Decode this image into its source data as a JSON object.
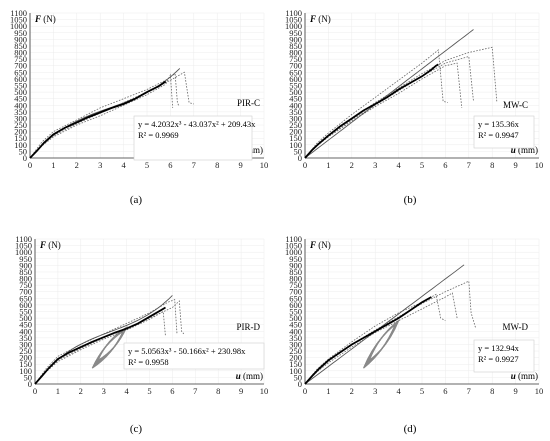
{
  "chart_data": [
    {
      "type": "line",
      "panel_label": "(a)",
      "ylabel_sym": "F",
      "ylabel_unit": "(N)",
      "xlabel_sym": "u",
      "xlabel_unit": "(mm)",
      "xlim": [
        0,
        10
      ],
      "ylim": [
        0,
        1100
      ],
      "x_ticks": [
        "0",
        "1",
        "2",
        "3",
        "4",
        "5",
        "6",
        "7",
        "8",
        "9",
        "10"
      ],
      "y_ticks": [
        "0",
        "50",
        "100",
        "150",
        "200",
        "250",
        "300",
        "350",
        "400",
        "450",
        "500",
        "550",
        "600",
        "650",
        "700",
        "750",
        "800",
        "850",
        "900",
        "950",
        "1000",
        "1050",
        "1100"
      ],
      "sample": "PIR-C",
      "equation": "y = 4.2032x³ - 43.037x² + 209.43x",
      "r2": "R² = 0.9969",
      "fit": {
        "form": "poly3",
        "coef": [
          4.2032,
          -43.037,
          209.43
        ],
        "x_max": 6.4
      },
      "mean_curve": [
        [
          0,
          0
        ],
        [
          0.3,
          55
        ],
        [
          0.6,
          115
        ],
        [
          1,
          180
        ],
        [
          1.5,
          230
        ],
        [
          2,
          270
        ],
        [
          2.5,
          310
        ],
        [
          3,
          345
        ],
        [
          3.5,
          380
        ],
        [
          4,
          410
        ],
        [
          4.5,
          450
        ],
        [
          5,
          500
        ],
        [
          5.5,
          545
        ],
        [
          5.8,
          580
        ]
      ],
      "test_curves": [
        [
          [
            0,
            0
          ],
          [
            0.5,
            120
          ],
          [
            1,
            200
          ],
          [
            2,
            290
          ],
          [
            3,
            380
          ],
          [
            4,
            450
          ],
          [
            5,
            520
          ],
          [
            5.8,
            590
          ],
          [
            6.2,
            640
          ],
          [
            6.3,
            420
          ],
          [
            6.35,
            400
          ]
        ],
        [
          [
            0,
            0
          ],
          [
            0.5,
            100
          ],
          [
            1,
            170
          ],
          [
            2,
            260
          ],
          [
            3,
            340
          ],
          [
            4,
            420
          ],
          [
            5,
            500
          ],
          [
            6,
            590
          ],
          [
            6.6,
            650
          ],
          [
            6.8,
            420
          ],
          [
            7,
            410
          ]
        ],
        [
          [
            0,
            0
          ],
          [
            0.5,
            90
          ],
          [
            1,
            160
          ],
          [
            2,
            250
          ],
          [
            3,
            320
          ],
          [
            4,
            400
          ],
          [
            5,
            480
          ],
          [
            5.8,
            560
          ],
          [
            6,
            630
          ],
          [
            6.1,
            380
          ]
        ]
      ]
    },
    {
      "type": "line",
      "panel_label": "(b)",
      "ylabel_sym": "F",
      "ylabel_unit": "(N)",
      "xlabel_sym": "u",
      "xlabel_unit": "(mm)",
      "xlim": [
        0,
        10
      ],
      "ylim": [
        0,
        1100
      ],
      "x_ticks": [
        "0",
        "1",
        "2",
        "3",
        "4",
        "5",
        "6",
        "7",
        "8",
        "9",
        "10"
      ],
      "y_ticks": [
        "0",
        "50",
        "100",
        "150",
        "200",
        "250",
        "300",
        "350",
        "400",
        "450",
        "500",
        "550",
        "600",
        "650",
        "700",
        "750",
        "800",
        "850",
        "900",
        "950",
        "1000",
        "1050",
        "1100"
      ],
      "sample": "MW-C",
      "equation": "y = 135.36x",
      "r2": "R² = 0.9947",
      "fit": {
        "form": "linear",
        "slope": 135.36,
        "x_max": 7.2
      },
      "mean_curve": [
        [
          0,
          0
        ],
        [
          0.3,
          60
        ],
        [
          0.6,
          110
        ],
        [
          1,
          170
        ],
        [
          1.5,
          240
        ],
        [
          2,
          300
        ],
        [
          2.5,
          360
        ],
        [
          3,
          410
        ],
        [
          3.5,
          460
        ],
        [
          4,
          520
        ],
        [
          4.5,
          570
        ],
        [
          5,
          620
        ],
        [
          5.4,
          670
        ],
        [
          5.6,
          700
        ],
        [
          5.7,
          710
        ]
      ],
      "test_curves": [
        [
          [
            0,
            0
          ],
          [
            0.5,
            110
          ],
          [
            1,
            190
          ],
          [
            2,
            330
          ],
          [
            3,
            460
          ],
          [
            4,
            590
          ],
          [
            5,
            720
          ],
          [
            5.7,
            820
          ],
          [
            5.9,
            430
          ],
          [
            6.1,
            420
          ]
        ],
        [
          [
            0,
            0
          ],
          [
            0.5,
            90
          ],
          [
            1,
            160
          ],
          [
            2,
            280
          ],
          [
            3,
            390
          ],
          [
            4,
            490
          ],
          [
            5,
            600
          ],
          [
            6,
            700
          ],
          [
            6.5,
            720
          ],
          [
            6.7,
            380
          ]
        ],
        [
          [
            0,
            0
          ],
          [
            0.5,
            100
          ],
          [
            1,
            170
          ],
          [
            2,
            300
          ],
          [
            3,
            420
          ],
          [
            4,
            530
          ],
          [
            5,
            640
          ],
          [
            6,
            740
          ],
          [
            7,
            800
          ],
          [
            8,
            840
          ],
          [
            8.2,
            420
          ]
        ],
        [
          [
            0,
            0
          ],
          [
            0.5,
            95
          ],
          [
            1,
            165
          ],
          [
            2,
            290
          ],
          [
            3,
            400
          ],
          [
            4,
            510
          ],
          [
            5,
            620
          ],
          [
            6,
            720
          ],
          [
            7,
            770
          ],
          [
            7.2,
            430
          ]
        ]
      ]
    },
    {
      "type": "line",
      "panel_label": "(c)",
      "ylabel_sym": "F",
      "ylabel_unit": "(N)",
      "xlabel_sym": "u",
      "xlabel_unit": "(mm)",
      "xlim": [
        0,
        10
      ],
      "ylim": [
        0,
        1100
      ],
      "x_ticks": [
        "0",
        "1",
        "2",
        "3",
        "4",
        "5",
        "6",
        "7",
        "8",
        "9",
        "10"
      ],
      "y_ticks": [
        "0",
        "50",
        "100",
        "150",
        "200",
        "250",
        "300",
        "350",
        "400",
        "450",
        "500",
        "550",
        "600",
        "650",
        "700",
        "750",
        "800",
        "850",
        "900",
        "950",
        "1000",
        "1050",
        "1100"
      ],
      "sample": "PIR-D",
      "equation": "y = 5.0563x³ - 50.166x² + 230.98x",
      "r2": "R² = 0.9958",
      "fit": {
        "form": "poly3",
        "coef": [
          5.0563,
          -50.166,
          230.98
        ],
        "x_max": 6.0
      },
      "mean_curve": [
        [
          0,
          0
        ],
        [
          0.3,
          60
        ],
        [
          0.6,
          120
        ],
        [
          1,
          190
        ],
        [
          1.5,
          240
        ],
        [
          2,
          280
        ],
        [
          2.5,
          320
        ],
        [
          3,
          355
        ],
        [
          3.5,
          390
        ],
        [
          4,
          420
        ],
        [
          4.5,
          460
        ],
        [
          5,
          510
        ],
        [
          5.5,
          560
        ],
        [
          5.7,
          580
        ]
      ],
      "test_curves": [
        [
          [
            0,
            0
          ],
          [
            0.5,
            120
          ],
          [
            1,
            210
          ],
          [
            2,
            300
          ],
          [
            3,
            380
          ],
          [
            4,
            460
          ],
          [
            5,
            540
          ],
          [
            5.8,
            620
          ],
          [
            6.1,
            640
          ],
          [
            6.2,
            380
          ]
        ],
        [
          [
            0,
            0
          ],
          [
            0.5,
            100
          ],
          [
            1,
            180
          ],
          [
            2,
            270
          ],
          [
            3,
            350
          ],
          [
            4,
            420
          ],
          [
            5,
            500
          ],
          [
            6,
            580
          ],
          [
            6.3,
            630
          ],
          [
            6.4,
            400
          ],
          [
            6.5,
            380
          ]
        ],
        [
          [
            0,
            0
          ],
          [
            0.5,
            95
          ],
          [
            1,
            170
          ],
          [
            2,
            260
          ],
          [
            3,
            340
          ],
          [
            4,
            410
          ],
          [
            5,
            490
          ],
          [
            5.6,
            550
          ],
          [
            5.7,
            360
          ]
        ]
      ],
      "hysteresis": {
        "x_start": 2.5,
        "x_end": 4.0,
        "y_low": 120,
        "y_high": 430
      }
    },
    {
      "type": "line",
      "panel_label": "(d)",
      "ylabel_sym": "F",
      "ylabel_unit": "(N)",
      "xlabel_sym": "u",
      "xlabel_unit": "(mm)",
      "xlim": [
        0,
        10
      ],
      "ylim": [
        0,
        1100
      ],
      "x_ticks": [
        "0",
        "1",
        "2",
        "3",
        "4",
        "5",
        "6",
        "7",
        "8",
        "9",
        "10"
      ],
      "y_ticks": [
        "0",
        "50",
        "100",
        "150",
        "200",
        "250",
        "300",
        "350",
        "400",
        "450",
        "500",
        "550",
        "600",
        "650",
        "700",
        "750",
        "800",
        "850",
        "900",
        "950",
        "1000",
        "1050",
        "1100"
      ],
      "sample": "MW-D",
      "equation": "y = 132.94x",
      "r2": "R² = 0.9927",
      "fit": {
        "form": "linear",
        "slope": 132.94,
        "x_max": 6.8
      },
      "mean_curve": [
        [
          0,
          0
        ],
        [
          0.3,
          60
        ],
        [
          0.6,
          115
        ],
        [
          1,
          180
        ],
        [
          1.5,
          240
        ],
        [
          2,
          300
        ],
        [
          2.5,
          350
        ],
        [
          3,
          400
        ],
        [
          3.5,
          450
        ],
        [
          4,
          500
        ],
        [
          4.5,
          560
        ],
        [
          5,
          620
        ],
        [
          5.4,
          660
        ]
      ],
      "test_curves": [
        [
          [
            0,
            0
          ],
          [
            0.5,
            110
          ],
          [
            1,
            190
          ],
          [
            2,
            320
          ],
          [
            3,
            440
          ],
          [
            4,
            540
          ],
          [
            5,
            620
          ],
          [
            5.6,
            680
          ],
          [
            5.8,
            500
          ],
          [
            6,
            480
          ]
        ],
        [
          [
            0,
            0
          ],
          [
            0.5,
            90
          ],
          [
            1,
            160
          ],
          [
            2,
            280
          ],
          [
            3,
            390
          ],
          [
            4,
            480
          ],
          [
            5,
            570
          ],
          [
            6,
            660
          ],
          [
            6.3,
            690
          ],
          [
            6.5,
            500
          ]
        ],
        [
          [
            0,
            0
          ],
          [
            0.5,
            100
          ],
          [
            1,
            170
          ],
          [
            2,
            300
          ],
          [
            3,
            410
          ],
          [
            4,
            510
          ],
          [
            5,
            610
          ],
          [
            6,
            700
          ],
          [
            7,
            780
          ],
          [
            7.1,
            540
          ],
          [
            7.3,
            420
          ]
        ]
      ],
      "hysteresis": {
        "x_start": 2.5,
        "x_end": 4.0,
        "y_low": 120,
        "y_high": 480
      }
    }
  ]
}
